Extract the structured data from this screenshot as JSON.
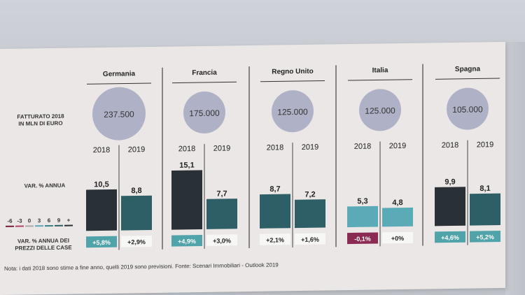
{
  "chart_data": {
    "type": "bar",
    "categories": [
      "Germania",
      "Francia",
      "Regno Unito",
      "Italia",
      "Spagna"
    ],
    "row_labels": {
      "revenue": [
        "FATTURATO 2018",
        "IN MLN DI EURO"
      ],
      "annual_change": "VAR. % ANNUA",
      "price_change": [
        "VAR. % ANNUA DEI",
        "PREZZI DELLE CASE"
      ]
    },
    "revenue_2018": [
      "237.500",
      "175.000",
      "125.000",
      "125.000",
      "105.000"
    ],
    "years": [
      "2018",
      "2019"
    ],
    "series": [
      {
        "name": "2018",
        "values": [
          10.5,
          15.1,
          8.7,
          5.3,
          9.9
        ],
        "labels": [
          "10,5",
          "15,1",
          "8,7",
          "5,3",
          "9,9"
        ]
      },
      {
        "name": "2019",
        "values": [
          8.8,
          7.7,
          7.2,
          4.8,
          8.1
        ],
        "labels": [
          "8,8",
          "7,7",
          "7,2",
          "4,8",
          "8,1"
        ]
      }
    ],
    "price_change": [
      [
        "+5,8%",
        "+2,9%"
      ],
      [
        "+4,9%",
        "+3,0%"
      ],
      [
        "+2,1%",
        "+1,6%"
      ],
      [
        "-0,1%",
        "+0%"
      ],
      [
        "+4,6%",
        "+5,2%"
      ]
    ],
    "legend_scale": [
      "-6",
      "-3",
      "0",
      "3",
      "6",
      "9",
      "+"
    ],
    "note": "Nota: i dati 2018 sono stime a fine anno, quelli 2019 sono previsioni. Fonte: Scenari Immobiliari - Outlook 2019",
    "colors": {
      "bar_dark": "#2a3136",
      "bar_teal_dark": "#2f5f66",
      "bar_teal_mid": "#3c7f86",
      "bar_teal_light": "#5aaab8",
      "circle": "#a9acc3",
      "badge_teal": "#4fa3a9",
      "badge_neg": "#8b2a52",
      "badge_white": "#f7f7f5"
    }
  }
}
